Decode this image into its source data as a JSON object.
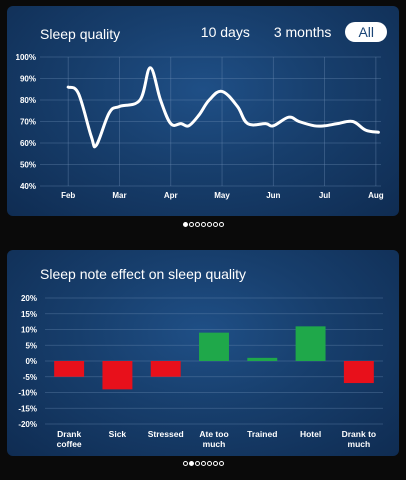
{
  "colors": {
    "line": "#ffffff",
    "negative": "#e8101b",
    "positive": "#1fa84a",
    "grid": "#6f8fb5"
  },
  "chart_data": [
    {
      "type": "line",
      "title": "Sleep quality",
      "range_tabs": [
        {
          "label": "10 days",
          "active": false
        },
        {
          "label": "3 months",
          "active": false
        },
        {
          "label": "All",
          "active": true
        }
      ],
      "x_tick_labels": [
        "Feb",
        "Mar",
        "Apr",
        "May",
        "Jun",
        "Jul",
        "Aug"
      ],
      "y_tick_labels": [
        "100%",
        "90%",
        "80%",
        "70%",
        "60%",
        "50%",
        "40%"
      ],
      "ylim": [
        40,
        100
      ],
      "grid": true,
      "x": [
        0,
        0.2,
        0.45,
        0.55,
        0.8,
        1.0,
        1.4,
        1.6,
        1.8,
        2.0,
        2.2,
        2.35,
        2.55,
        2.75,
        3.0,
        3.3,
        3.5,
        3.85,
        4.0,
        4.3,
        4.5,
        4.8,
        5.0,
        5.25,
        5.55,
        5.8,
        6.05
      ],
      "series": [
        {
          "values": [
            86,
            83,
            63,
            59,
            74,
            77,
            80,
            95,
            80,
            69,
            69,
            68,
            73,
            80,
            84,
            77,
            69,
            69,
            68,
            72,
            70,
            68,
            68,
            69,
            70,
            66,
            65
          ]
        }
      ],
      "pager": {
        "count": 7,
        "active": 0
      }
    },
    {
      "type": "bar",
      "title": "Sleep note effect on sleep quality",
      "categories": [
        "Drank coffee",
        "Sick",
        "Stressed",
        "Ate too much",
        "Trained",
        "Hotel",
        "Drank to much"
      ],
      "category_lines": [
        [
          "Drank",
          "coffee"
        ],
        [
          "Sick"
        ],
        [
          "Stressed"
        ],
        [
          "Ate too",
          "much"
        ],
        [
          "Trained"
        ],
        [
          "Hotel"
        ],
        [
          "Drank to",
          "much"
        ]
      ],
      "values": [
        -5,
        -9,
        -5,
        9,
        1,
        11,
        -7
      ],
      "y_tick_labels": [
        "20%",
        "15%",
        "10%",
        "5%",
        "0%",
        "-5%",
        "-10%",
        "-15%",
        "-20%"
      ],
      "ylim": [
        -20,
        20
      ],
      "grid": true,
      "pager": {
        "count": 7,
        "active": 1
      }
    }
  ]
}
